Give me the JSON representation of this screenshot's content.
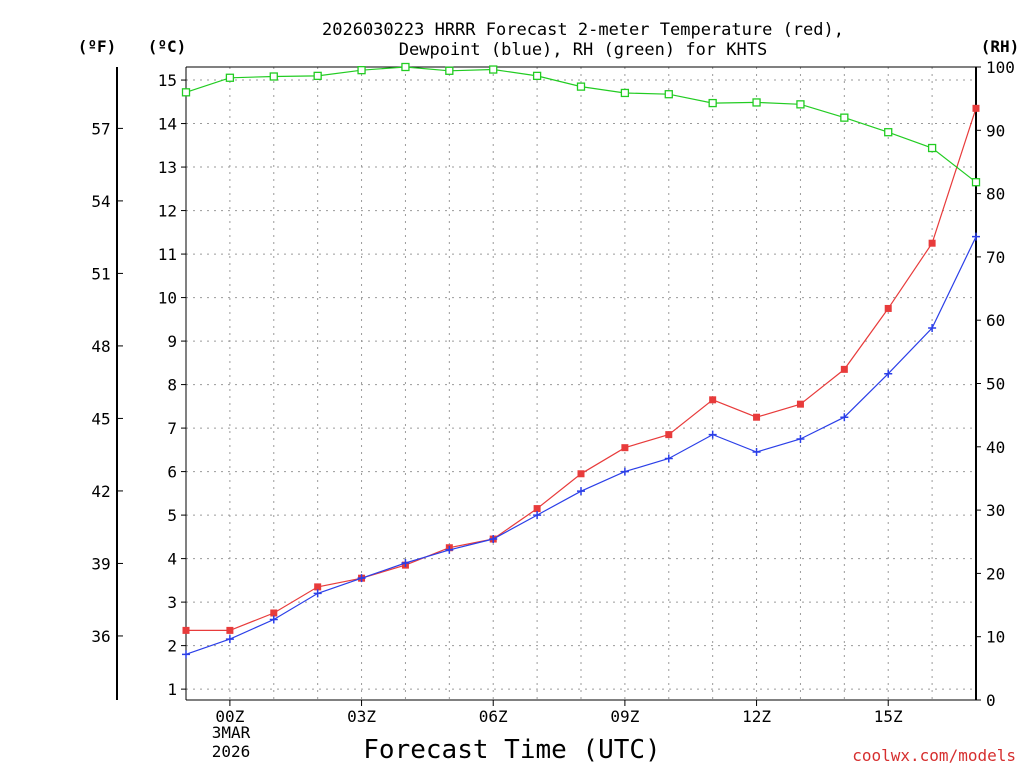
{
  "chart_data": {
    "type": "line",
    "title_line1": "2026030223 HRRR Forecast 2-meter Temperature (red),",
    "title_line2": "Dewpoint (blue), RH (green) for KHTS",
    "xlabel": "Forecast Time (UTC)",
    "credit": "coolwx.com/models",
    "units": {
      "fahrenheit": "(ºF)",
      "celsius": "(ºC)",
      "rh": "(RH)"
    },
    "x_hours": [
      -1,
      0,
      1,
      2,
      3,
      4,
      5,
      6,
      7,
      8,
      9,
      10,
      11,
      12,
      13,
      14,
      15,
      16,
      17
    ],
    "x_ticks": [
      {
        "hour": 0,
        "label": "00Z"
      },
      {
        "hour": 3,
        "label": "03Z"
      },
      {
        "hour": 6,
        "label": "06Z"
      },
      {
        "hour": 9,
        "label": "09Z"
      },
      {
        "hour": 12,
        "label": "12Z"
      },
      {
        "hour": 15,
        "label": "15Z"
      }
    ],
    "date_label_1": "3MAR",
    "date_label_2": "2026",
    "xlim": [
      -1,
      17
    ],
    "celsius_axis": {
      "range": [
        0.75,
        15.3
      ],
      "ticks": [
        1,
        2,
        3,
        4,
        5,
        6,
        7,
        8,
        9,
        10,
        11,
        12,
        13,
        14,
        15
      ]
    },
    "fahrenheit_axis": {
      "ticks": [
        36,
        39,
        42,
        45,
        48,
        51,
        54,
        57
      ]
    },
    "rh_axis": {
      "range": [
        0,
        100
      ],
      "ticks": [
        0,
        10,
        20,
        30,
        40,
        50,
        60,
        70,
        80,
        90,
        100
      ]
    },
    "series": [
      {
        "name": "Temperature",
        "axis": "celsius",
        "color": "#e83b3b",
        "marker": "filled-square",
        "values": [
          2.35,
          2.35,
          2.75,
          3.35,
          3.55,
          3.85,
          4.25,
          4.45,
          5.15,
          5.95,
          6.55,
          6.85,
          7.65,
          7.25,
          7.55,
          8.35,
          9.75,
          11.25,
          14.35
        ]
      },
      {
        "name": "Dewpoint",
        "axis": "celsius",
        "color": "#2b3fe8",
        "marker": "plus",
        "values": [
          1.8,
          2.15,
          2.6,
          3.2,
          3.55,
          3.9,
          4.2,
          4.45,
          5.0,
          5.55,
          6.0,
          6.3,
          6.85,
          6.45,
          6.75,
          7.25,
          8.25,
          9.3,
          11.4
        ]
      },
      {
        "name": "RH",
        "axis": "rh",
        "color": "#22cc22",
        "marker": "open-square",
        "values": [
          96,
          98.3,
          98.5,
          98.6,
          99.5,
          100,
          99.4,
          99.6,
          98.6,
          96.9,
          95.9,
          95.7,
          94.3,
          94.4,
          94.1,
          92,
          89.7,
          87.2,
          81.8
        ]
      }
    ]
  }
}
